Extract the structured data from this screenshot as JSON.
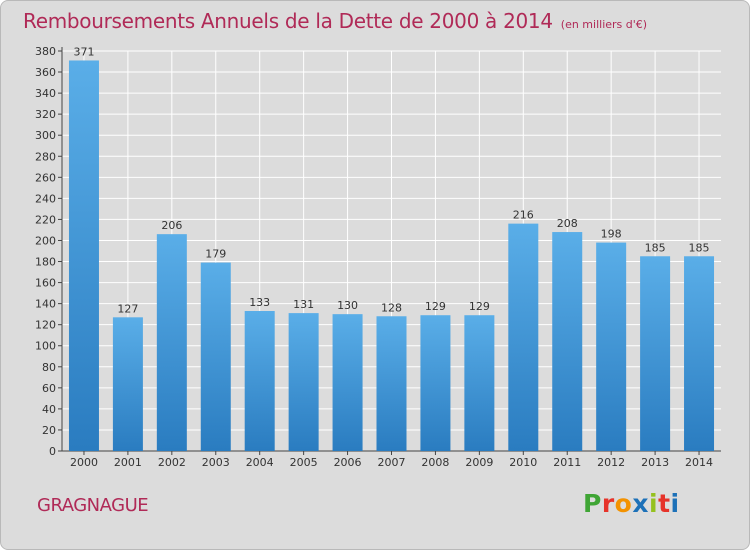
{
  "header": {
    "title": "Remboursements Annuels de la Dette de 2000 à 2014",
    "subtitle": "(en milliers d'€)"
  },
  "footer": {
    "commune": "GRAGNAGUE",
    "logo_letters": [
      "P",
      "r",
      "o",
      "x",
      "i",
      "t",
      "i"
    ],
    "logo_colors": [
      "#3fa535",
      "#e6332a",
      "#f39200",
      "#1d71b8",
      "#95c11f",
      "#e6332a",
      "#1d71b8"
    ]
  },
  "colors": {
    "bar_top": "#5aaee8",
    "bar_bottom": "#2a7cc0",
    "text": "#333333",
    "grid": "#ffffff"
  },
  "chart_data": {
    "type": "bar",
    "title": "Remboursements Annuels de la Dette de 2000 à 2014",
    "subtitle": "(en milliers d'€)",
    "categories": [
      "2000",
      "2001",
      "2002",
      "2003",
      "2004",
      "2005",
      "2006",
      "2007",
      "2008",
      "2009",
      "2010",
      "2011",
      "2012",
      "2013",
      "2014"
    ],
    "values": [
      371,
      127,
      206,
      179,
      133,
      131,
      130,
      128,
      129,
      129,
      216,
      208,
      198,
      185,
      185
    ],
    "ylim": [
      0,
      380
    ],
    "ytick_step": 20,
    "grid": true,
    "xlabel": "",
    "ylabel": ""
  }
}
